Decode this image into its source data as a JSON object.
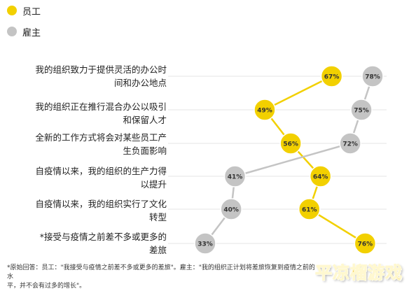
{
  "legend": [
    {
      "name": "员工",
      "color": "#f2d000"
    },
    {
      "name": "雇主",
      "color": "#c4c4c4"
    }
  ],
  "chart_data": {
    "type": "dot-plot",
    "categories": [
      "我的组织致力于提供灵活的办公时间和办公地点",
      "我的组织正在推行混合办公以吸引和保留人才",
      "全新的工作方式将会对某些员工产生负面影响",
      "自疫情以来，我的组织的生产力得以提升",
      "自疫情以来，我的组织实行了文化转型",
      "*接受与疫情之前差不多或更多的差旅"
    ],
    "category_lines": [
      "我的组织致力于提供灵活的办公时\n间和办公地点",
      "我的组织正在推行混合办公以吸引\n和保留人才",
      "全新的工作方式将会对某些员工产\n生负面影响",
      "自疫情以来，我的组织的生产力得\n以提升",
      "自疫情以来，我的组织实行了文化\n转型",
      "*接受与疫情之前差不多或更多的\n差旅"
    ],
    "series": [
      {
        "name": "员工",
        "color": "#f2d000",
        "values": [
          67,
          49,
          56,
          64,
          61,
          76
        ]
      },
      {
        "name": "雇主",
        "color": "#c4c4c4",
        "values": [
          78,
          75,
          72,
          41,
          40,
          33
        ]
      }
    ],
    "value_suffix": "%",
    "xlim": [
      33,
      78
    ],
    "grid": "horizontal"
  },
  "footnote": "*原始回答：员工：\"我接受与疫情之前差不多或更多的差旅\"。雇主：\"我的组织正计划将差旅恢复到疫情之前的水\n平，并不会有过多的增长\"。",
  "watermark": "平凉榴游戏"
}
